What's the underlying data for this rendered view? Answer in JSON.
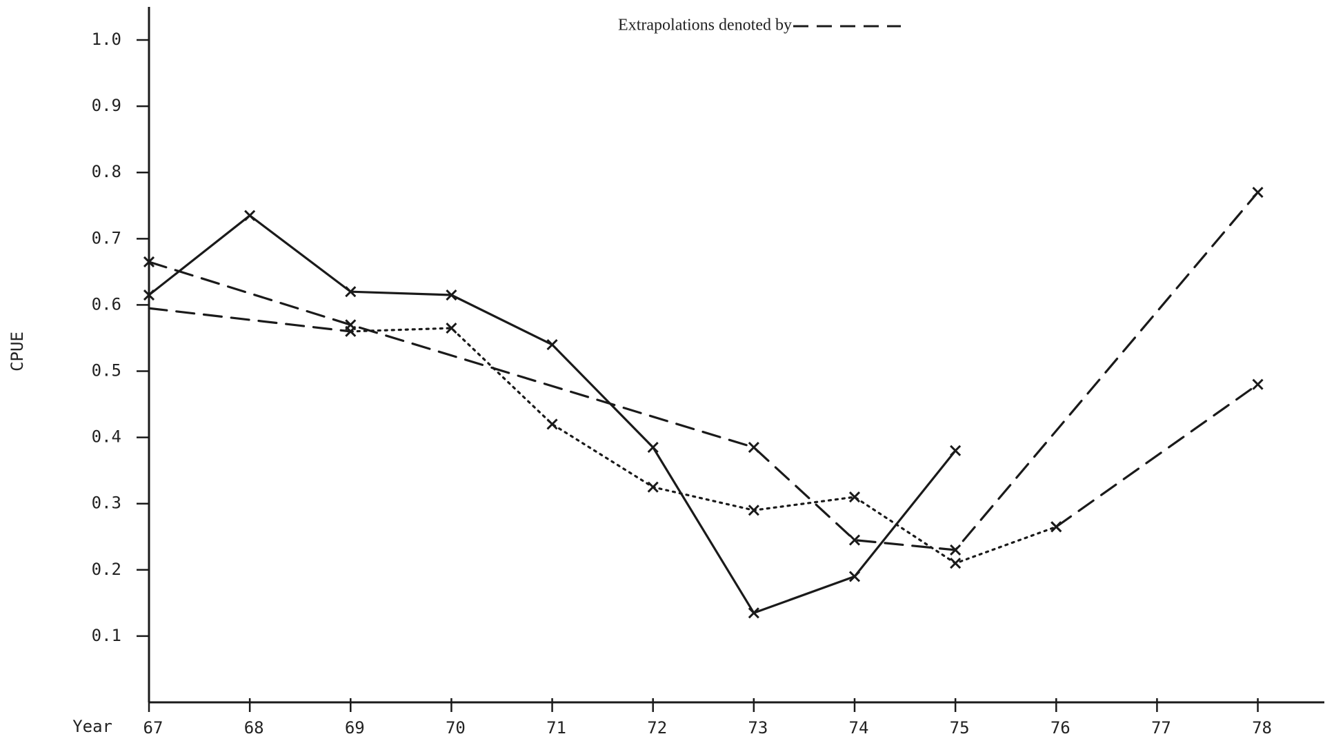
{
  "chart_data": {
    "type": "line",
    "annotation": "Extrapolations denoted by",
    "x_label": "Year",
    "y_label": "CPUE",
    "xlim": [
      67,
      78.66
    ],
    "xticks": [
      67,
      68,
      69,
      70,
      71,
      72,
      73,
      74,
      75,
      76,
      77,
      78
    ],
    "ylim": [
      0,
      1.05
    ],
    "yticks": [
      0.1,
      0.2,
      0.3,
      0.4,
      0.5,
      0.6,
      0.7,
      0.8,
      0.9,
      {
        "value": 1,
        "label": "1.0"
      }
    ],
    "grid": false,
    "color": "#1a1a1a",
    "series": [
      {
        "style": "solid",
        "marker": true,
        "x": [
          67,
          68,
          69,
          70,
          71,
          72,
          73,
          74,
          75
        ],
        "values": [
          0.615,
          0.735,
          0.62,
          0.615,
          0.54,
          0.385,
          0.135,
          0.19,
          0.38
        ]
      },
      {
        "style": "dotted",
        "marker": true,
        "x": [
          69,
          70,
          71,
          72,
          73,
          74,
          75,
          76
        ],
        "values": [
          0.56,
          0.565,
          0.42,
          0.325,
          0.29,
          0.31,
          0.21,
          0.265
        ]
      },
      {
        "style": "dashed",
        "marker": false,
        "x": [
          67,
          69
        ],
        "values": [
          0.595,
          0.56
        ]
      },
      {
        "style": "dashed",
        "marker": true,
        "x": [
          76,
          78
        ],
        "values": [
          0.265,
          0.48
        ]
      },
      {
        "style": "dashed",
        "marker": true,
        "x": [
          67,
          69,
          73,
          74,
          75,
          78
        ],
        "values": [
          0.665,
          0.57,
          0.385,
          0.245,
          0.23,
          0.77
        ]
      }
    ]
  }
}
